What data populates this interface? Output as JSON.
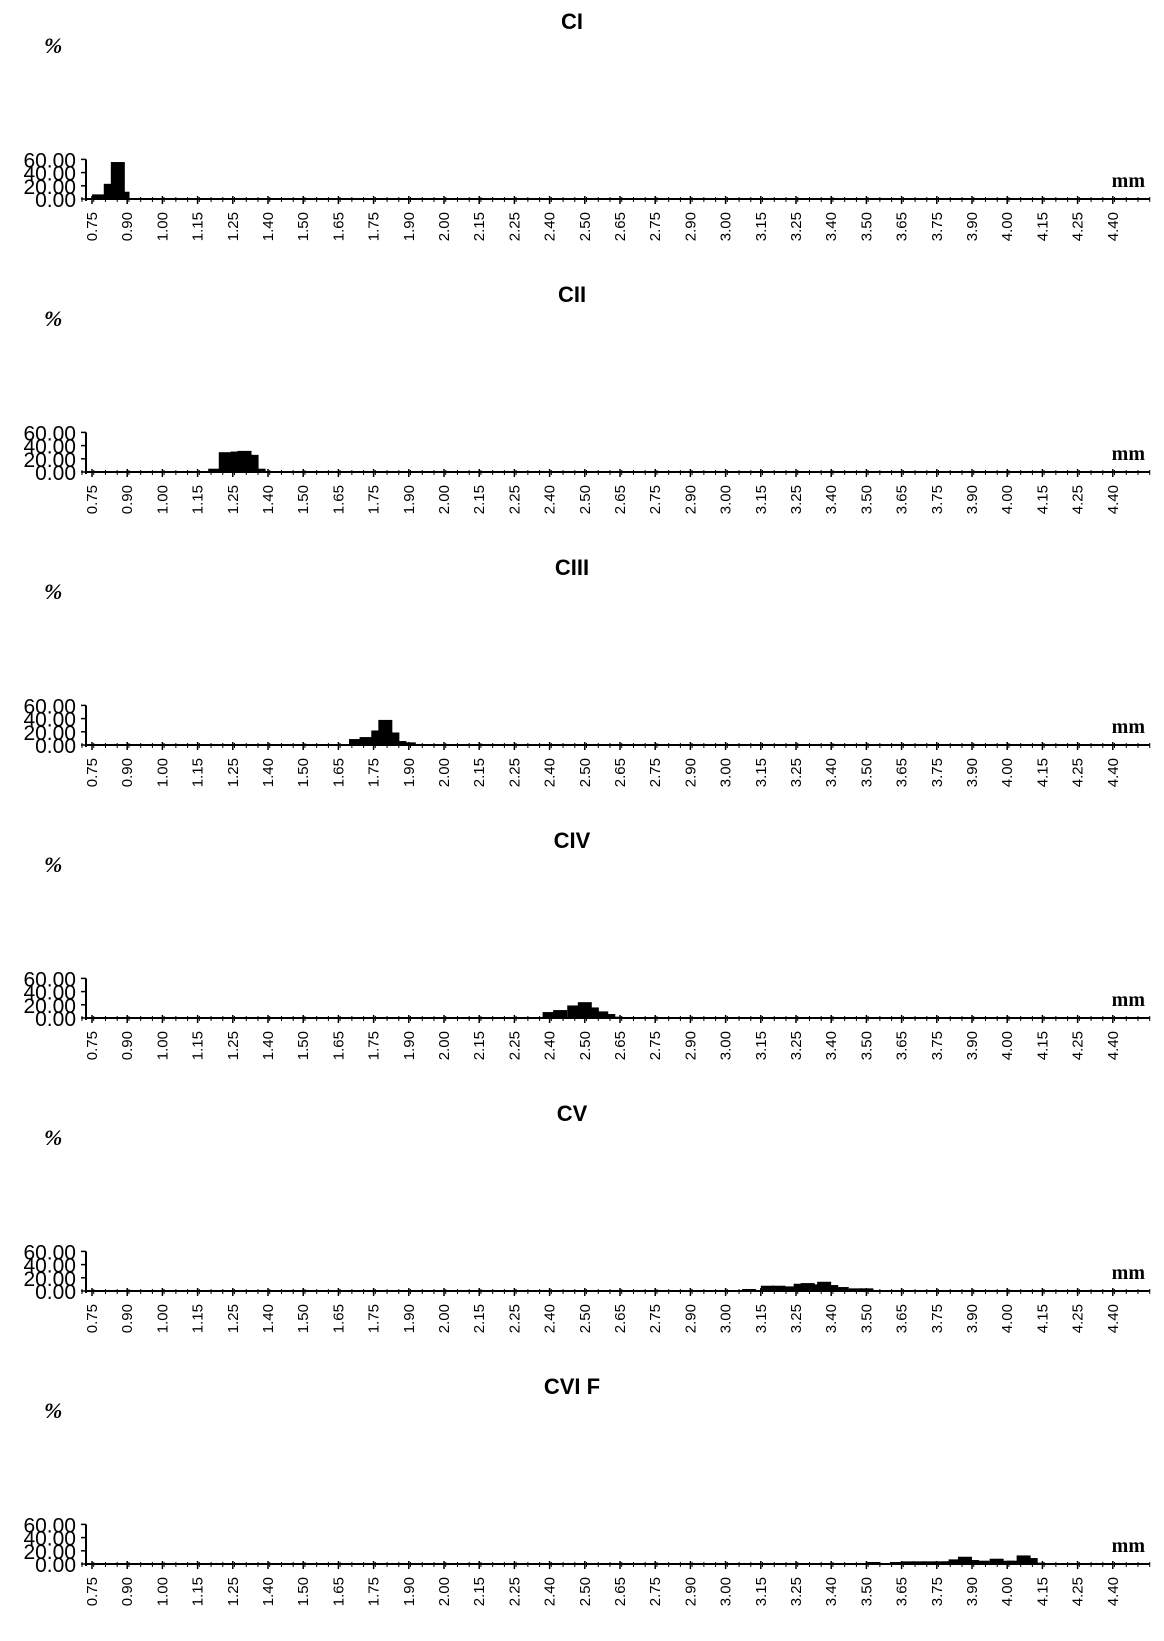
{
  "chart_data": [
    {
      "type": "bar",
      "title": "CI",
      "ylabel": "%",
      "xlabel": "mm",
      "ylim": [
        0,
        60
      ],
      "yticks": [
        "60.00",
        "40.00",
        "20.00",
        "0.00"
      ],
      "xticks": [
        "0.75",
        "0.90",
        "1.00",
        "1.15",
        "1.25",
        "1.40",
        "1.50",
        "1.65",
        "1.75",
        "1.90",
        "2.00",
        "2.15",
        "2.25",
        "2.40",
        "2.50",
        "2.65",
        "2.75",
        "2.90",
        "3.00",
        "3.15",
        "3.25",
        "3.40",
        "3.50",
        "3.65",
        "3.75",
        "3.90",
        "4.00",
        "4.15",
        "4.25",
        "4.40"
      ],
      "x": [
        0.78,
        0.83,
        0.86,
        0.88
      ],
      "values": [
        7,
        23,
        56,
        11
      ]
    },
    {
      "type": "bar",
      "title": "CII",
      "ylabel": "%",
      "xlabel": "mm",
      "ylim": [
        0,
        60
      ],
      "yticks": [
        "60.00",
        "40.00",
        "20.00",
        "0.00"
      ],
      "xticks": [
        "0.75",
        "0.90",
        "1.00",
        "1.15",
        "1.25",
        "1.40",
        "1.50",
        "1.65",
        "1.75",
        "1.90",
        "2.00",
        "2.15",
        "2.25",
        "2.40",
        "2.50",
        "2.65",
        "2.75",
        "2.90",
        "3.00",
        "3.15",
        "3.25",
        "3.40",
        "3.50",
        "3.65",
        "3.75",
        "3.90",
        "4.00",
        "4.15",
        "4.25",
        "4.40"
      ],
      "x": [
        1.2,
        1.23,
        1.27,
        1.3,
        1.33,
        1.36
      ],
      "values": [
        5,
        30,
        31,
        32,
        26,
        5
      ]
    },
    {
      "type": "bar",
      "title": "CIII",
      "ylabel": "%",
      "xlabel": "mm",
      "ylim": [
        0,
        60
      ],
      "yticks": [
        "60.00",
        "40.00",
        "20.00",
        "0.00"
      ],
      "xticks": [
        "0.75",
        "0.90",
        "1.00",
        "1.15",
        "1.25",
        "1.40",
        "1.50",
        "1.65",
        "1.75",
        "1.90",
        "2.00",
        "2.15",
        "2.25",
        "2.40",
        "2.50",
        "2.65",
        "2.75",
        "2.90",
        "3.00",
        "3.15",
        "3.25",
        "3.40",
        "3.50",
        "3.65",
        "3.75",
        "3.90",
        "4.00",
        "4.15",
        "4.25",
        "4.40"
      ],
      "x": [
        1.7,
        1.73,
        1.77,
        1.8,
        1.83,
        1.86,
        1.9,
        1.93
      ],
      "values": [
        9,
        12,
        22,
        38,
        19,
        6,
        4,
        1
      ]
    },
    {
      "type": "bar",
      "title": "CIV",
      "ylabel": "%",
      "xlabel": "mm",
      "ylim": [
        0,
        60
      ],
      "yticks": [
        "60.00",
        "40.00",
        "20.00",
        "0.00"
      ],
      "xticks": [
        "0.75",
        "0.90",
        "1.00",
        "1.15",
        "1.25",
        "1.40",
        "1.50",
        "1.65",
        "1.75",
        "1.90",
        "2.00",
        "2.15",
        "2.25",
        "2.40",
        "2.50",
        "2.65",
        "2.75",
        "2.90",
        "3.00",
        "3.15",
        "3.25",
        "3.40",
        "3.50",
        "3.65",
        "3.75",
        "3.90",
        "4.00",
        "4.15",
        "4.25",
        "4.40"
      ],
      "x": [
        2.37,
        2.4,
        2.43,
        2.47,
        2.5,
        2.53,
        2.57,
        2.6,
        2.63
      ],
      "values": [
        1,
        9,
        12,
        19,
        24,
        16,
        10,
        6,
        2
      ]
    },
    {
      "type": "bar",
      "title": "CV",
      "ylabel": "%",
      "xlabel": "mm",
      "ylim": [
        0,
        60
      ],
      "yticks": [
        "60.00",
        "40.00",
        "20.00",
        "0.00"
      ],
      "xticks": [
        "0.75",
        "0.90",
        "1.00",
        "1.15",
        "1.25",
        "1.40",
        "1.50",
        "1.65",
        "1.75",
        "1.90",
        "2.00",
        "2.15",
        "2.25",
        "2.40",
        "2.50",
        "2.65",
        "2.75",
        "2.90",
        "3.00",
        "3.15",
        "3.25",
        "3.40",
        "3.50",
        "3.65",
        "3.75",
        "3.90",
        "4.00",
        "4.15",
        "4.25",
        "4.40"
      ],
      "x": [
        3.03,
        3.1,
        3.17,
        3.2,
        3.23,
        3.27,
        3.3,
        3.33,
        3.37,
        3.4,
        3.43,
        3.47,
        3.5,
        3.53,
        3.57,
        3.63
      ],
      "values": [
        1,
        3,
        8,
        8,
        7,
        11,
        12,
        10,
        14,
        9,
        6,
        4,
        4,
        1,
        1,
        1
      ]
    },
    {
      "type": "bar",
      "title": "CVI F",
      "ylabel": "%",
      "xlabel": "mm",
      "ylim": [
        0,
        60
      ],
      "yticks": [
        "60.00",
        "40.00",
        "20.00",
        "0.00"
      ],
      "xticks": [
        "0.75",
        "0.90",
        "1.00",
        "1.15",
        "1.25",
        "1.40",
        "1.50",
        "1.65",
        "1.75",
        "1.90",
        "2.00",
        "2.15",
        "2.25",
        "2.40",
        "2.50",
        "2.65",
        "2.75",
        "2.90",
        "3.00",
        "3.15",
        "3.25",
        "3.40",
        "3.50",
        "3.65",
        "3.75",
        "3.90",
        "4.00",
        "4.15",
        "4.25",
        "4.40"
      ],
      "x": [
        3.43,
        3.5,
        3.53,
        3.6,
        3.63,
        3.67,
        3.7,
        3.73,
        3.77,
        3.8,
        3.83,
        3.87,
        3.9,
        3.93,
        3.97,
        4.0,
        4.03,
        4.07,
        4.1,
        4.13,
        4.17,
        4.2
      ],
      "values": [
        1,
        1,
        3,
        1,
        3,
        4,
        4,
        4,
        4,
        4,
        7,
        11,
        6,
        5,
        8,
        5,
        5,
        13,
        9,
        2,
        1,
        1
      ]
    }
  ]
}
